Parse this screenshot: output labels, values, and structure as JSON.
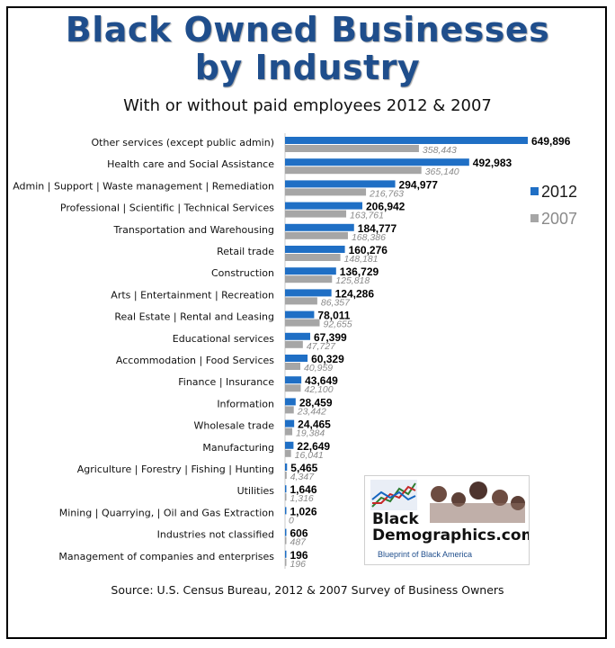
{
  "title_line1": "Black Owned Businesses",
  "title_line2": "by Industry",
  "subtitle": "With or without paid employees 2012 & 2007",
  "source": "Source: U.S. Census Bureau, 2012 & 2007 Survey of Business Owners",
  "logo": {
    "name_line1": "Black",
    "name_line2": "Demographics.com",
    "tagline": "Blueprint of Black America"
  },
  "colors": {
    "title": "#1f4e8c",
    "series_2012": "#1f6fc5",
    "series_2007": "#a6a6a6"
  },
  "chart_data": {
    "type": "bar",
    "orientation": "horizontal",
    "categories": [
      "Other services (except public admin)",
      "Health care and Social Assistance",
      "Admin | Support | Waste management | Remediation",
      "Professional | Scientific | Technical Services",
      "Transportation and Warehousing",
      "Retail trade",
      "Construction",
      "Arts | Entertainment | Recreation",
      "Real Estate | Rental and Leasing",
      "Educational services",
      "Accommodation | Food Services",
      "Finance | Insurance",
      "Information",
      "Wholesale trade",
      "Manufacturing",
      "Agriculture | Forestry | Fishing | Hunting",
      "Utilities",
      "Mining | Quarrying, | Oil and Gas Extraction",
      "Industries not classified",
      "Management of companies and enterprises"
    ],
    "series": [
      {
        "name": "2012",
        "values": [
          649896,
          492983,
          294977,
          206942,
          184777,
          160276,
          136729,
          124286,
          78011,
          67399,
          60329,
          43649,
          28459,
          24465,
          22649,
          5465,
          1646,
          1026,
          606,
          196
        ],
        "labels": [
          "649,896",
          "492,983",
          "294,977",
          "206,942",
          "184,777",
          "160,276",
          "136,729",
          "124,286",
          "78,011",
          "67,399",
          "60,329",
          "43,649",
          "28,459",
          "24,465",
          "22,649",
          "5,465",
          "1,646",
          "1,026",
          "606",
          "196"
        ]
      },
      {
        "name": "2007",
        "values": [
          358443,
          365140,
          216763,
          163761,
          168386,
          148181,
          125818,
          86357,
          92655,
          47727,
          40959,
          42100,
          23442,
          19384,
          16041,
          4347,
          1316,
          0,
          487,
          196
        ],
        "labels": [
          "358,443",
          "365,140",
          "216,763",
          "163,761",
          "168,386",
          "148,181",
          "125,818",
          "86,357",
          "92,655",
          "47,727",
          "40,959",
          "42,100",
          "23,442",
          "19,384",
          "16,041",
          "4,347",
          "1,316",
          "0",
          "487",
          "196"
        ]
      }
    ],
    "legend": [
      "2012",
      "2007"
    ],
    "legend_position": "right",
    "xlim": [
      0,
      649896
    ],
    "grid": false
  }
}
